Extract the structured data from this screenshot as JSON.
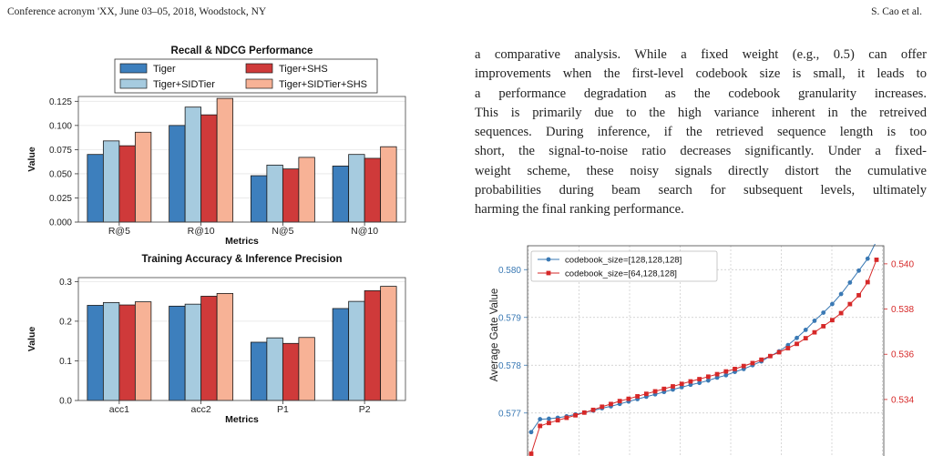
{
  "header": {
    "left": "Conference acronym 'XX, June 03–05, 2018, Woodstock, NY",
    "right": "S. Cao et al."
  },
  "paragraph_lines": [
    "a comparative analysis. While a fixed weight (e.g., 0.5) can offer",
    "improvements when the first-level codebook size is small, it leads to",
    "a performance degradation as the codebook granularity increases.",
    "This is primarily due to the high variance inherent in the retreived",
    "sequences. During inference, if the retrieved sequence length is too",
    "short, the signal-to-noise ratio decreases significantly. Under a fixed-",
    "weight scheme, these noisy signals directly distort the cumulative",
    "probabilities during beam search for subsequent levels, ultimately",
    "harming the final ranking performance."
  ],
  "colors": {
    "tiger": "#3d7fbd",
    "tiger_sidtier": "#a6cbdf",
    "tiger_shs": "#cf3a3a",
    "tiger_sidtier_shs": "#f7b296",
    "gate_blue": "#3a79b4",
    "gate_red": "#d62828"
  },
  "chart_data": [
    {
      "type": "bar",
      "title": "Recall & NDCG Performance",
      "xlabel": "Metrics",
      "ylabel": "Value",
      "categories": [
        "R@5",
        "R@10",
        "N@5",
        "N@10"
      ],
      "ylim": [
        0,
        0.13
      ],
      "yticks": [
        "0.000",
        "0.025",
        "0.050",
        "0.075",
        "0.100",
        "0.125"
      ],
      "grid": true,
      "legend": "top-center",
      "series": [
        {
          "name": "Tiger",
          "values": [
            0.07,
            0.1,
            0.048,
            0.058
          ]
        },
        {
          "name": "Tiger+SIDTier",
          "values": [
            0.084,
            0.119,
            0.059,
            0.07
          ]
        },
        {
          "name": "Tiger+SHS",
          "values": [
            0.079,
            0.111,
            0.055,
            0.066
          ]
        },
        {
          "name": "Tiger+SIDTier+SHS",
          "values": [
            0.093,
            0.128,
            0.067,
            0.078
          ]
        }
      ]
    },
    {
      "type": "bar",
      "title": "Training Accuracy & Inference Precision",
      "xlabel": "Metrics",
      "ylabel": "Value",
      "categories": [
        "acc1",
        "acc2",
        "P1",
        "P2"
      ],
      "ylim": [
        0,
        0.31
      ],
      "yticks": [
        "0.0",
        "0.1",
        "0.2",
        "0.3"
      ],
      "grid": true,
      "series": [
        {
          "name": "Tiger",
          "values": [
            0.24,
            0.238,
            0.147,
            0.232
          ]
        },
        {
          "name": "Tiger+SIDTier",
          "values": [
            0.247,
            0.243,
            0.158,
            0.25
          ]
        },
        {
          "name": "Tiger+SHS",
          "values": [
            0.241,
            0.263,
            0.144,
            0.277
          ]
        },
        {
          "name": "Tiger+SIDTier+SHS",
          "values": [
            0.249,
            0.27,
            0.159,
            0.288
          ]
        }
      ]
    },
    {
      "type": "line",
      "ylabel": "Average Gate Value",
      "legend": "top-left",
      "grid": true,
      "ylim_left": [
        0.5761,
        0.5805
      ],
      "ylim_right": [
        0.5315,
        0.5408
      ],
      "yticks_left": [
        "0.577",
        "0.578",
        "0.579",
        "0.580"
      ],
      "yticks_right": [
        "0.534",
        "0.536",
        "0.538",
        "0.540"
      ],
      "x": [
        0,
        1,
        2,
        3,
        4,
        5,
        6,
        7,
        8,
        9,
        10,
        11,
        12,
        13,
        14,
        15,
        16,
        17,
        18,
        19,
        20,
        21,
        22,
        23,
        24,
        25,
        26,
        27,
        28,
        29,
        30,
        31,
        32,
        33,
        34,
        35,
        36,
        37,
        38,
        39
      ],
      "series": [
        {
          "name": "codebook_size=[128,128,128]",
          "axis": "left",
          "values": [
            0.5766,
            0.57687,
            0.57688,
            0.5769,
            0.57693,
            0.57697,
            0.57701,
            0.57705,
            0.5771,
            0.57714,
            0.57719,
            0.57724,
            0.57729,
            0.57734,
            0.57739,
            0.57744,
            0.57749,
            0.57754,
            0.57759,
            0.57763,
            0.57768,
            0.57774,
            0.57779,
            0.57786,
            0.57792,
            0.578,
            0.57808,
            0.57819,
            0.57829,
            0.57842,
            0.57857,
            0.57874,
            0.57893,
            0.5791,
            0.57928,
            0.57949,
            0.57973,
            0.57998,
            0.58023,
            0.5806
          ]
        },
        {
          "name": "codebook_size=[64,128,128]",
          "axis": "right",
          "values": [
            0.5316,
            0.53283,
            0.53296,
            0.53308,
            0.53319,
            0.5333,
            0.53342,
            0.53354,
            0.53368,
            0.5338,
            0.53393,
            0.53403,
            0.53414,
            0.53425,
            0.53436,
            0.53447,
            0.53458,
            0.53469,
            0.5348,
            0.5349,
            0.53501,
            0.53512,
            0.53524,
            0.53535,
            0.53548,
            0.53561,
            0.53576,
            0.53592,
            0.53609,
            0.53627,
            0.53646,
            0.53671,
            0.53697,
            0.53724,
            0.53751,
            0.53782,
            0.53822,
            0.53861,
            0.53919,
            0.54018
          ]
        }
      ]
    }
  ]
}
